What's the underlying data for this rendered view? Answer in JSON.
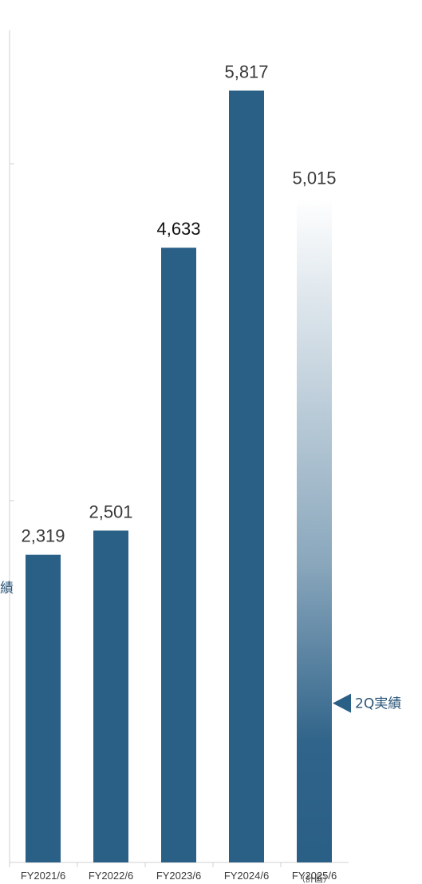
{
  "chart_data": {
    "type": "bar",
    "categories": [
      "FY2021/6",
      "FY2022/6",
      "FY2023/6",
      "FY2024/6",
      "FY2025/6"
    ],
    "category_sublabels": [
      "",
      "",
      "",
      "",
      "（計画）"
    ],
    "values": [
      2319,
      2501,
      4633,
      5817,
      5015
    ],
    "value_labels": [
      "2,319",
      "2,501",
      "4,633",
      "5,817",
      "5,015"
    ],
    "planned_index": 4,
    "ylim": [
      0,
      6500
    ],
    "grid": false,
    "annotation": {
      "text": "2Q実績",
      "clipped_text": "績",
      "value": 1200
    },
    "colors": {
      "bar": "#2a5f86",
      "axis": "#d0d0d0"
    }
  }
}
